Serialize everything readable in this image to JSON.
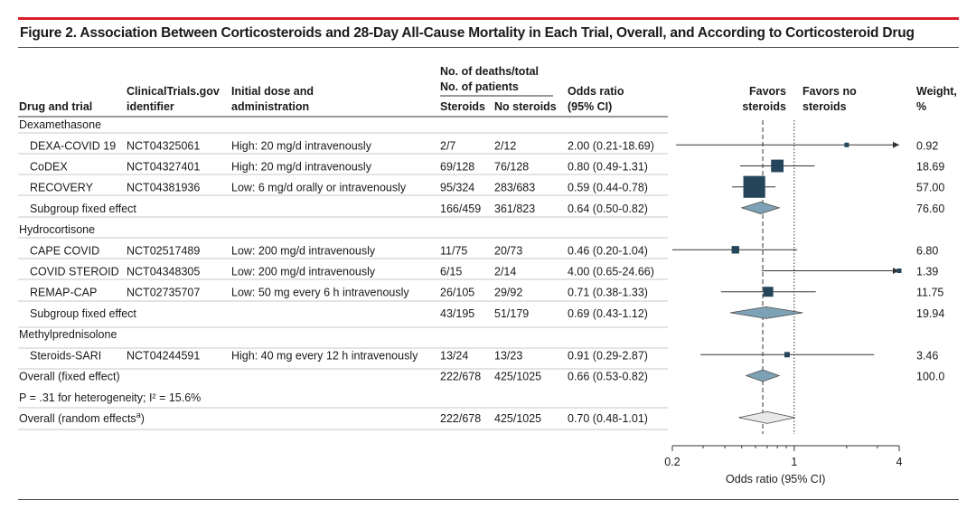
{
  "title": "Figure 2. Association Between Corticosteroids and 28-Day All-Cause Mortality in Each Trial, Overall, and According to Corticosteroid Drug",
  "headers": {
    "deaths_top1": "No. of deaths/total",
    "deaths_top2": "No. of patients",
    "drug": "Drug and trial",
    "id1": "ClinicalTrials.gov",
    "id2": "identifier",
    "dose1": "Initial dose and",
    "dose2": "administration",
    "steroids": "Steroids",
    "nosteroids": "No steroids",
    "or1": "Odds ratio",
    "or2": "(95% CI)",
    "favors_left1": "Favors",
    "favors_left2": "steroids",
    "favors_right1": "Favors no",
    "favors_right2": "steroids",
    "weight1": "Weight,",
    "weight2": "%"
  },
  "heterogeneity": "P = .31 for heterogeneity; I² = 15.6%",
  "colors": {
    "accent_red": "#d91f2b",
    "box": "#25465a",
    "diamond_fixed": "#7da2b5",
    "diamond_random": "#e8e8e8"
  },
  "chart_data": {
    "type": "forest",
    "xlabel": "Odds ratio (95% CI)",
    "xscale": "log",
    "xlim": [
      0.2,
      4
    ],
    "xticks": [
      "0.2",
      "1",
      "4"
    ],
    "null_line": 1,
    "fixed_effect_reference_line": 0.66,
    "rows": [
      {
        "kind": "group",
        "label": "Dexamethasone"
      },
      {
        "kind": "study",
        "label": "DEXA-COVID 19",
        "id": "NCT04325061",
        "dose": "High: 20 mg/d intravenously",
        "steroids": "2/7",
        "nosteroids": "2/12",
        "or_text": "2.00 (0.21-18.69)",
        "or": 2.0,
        "lo": 0.21,
        "hi": 18.69,
        "weight": "0.92"
      },
      {
        "kind": "study",
        "label": "CoDEX",
        "id": "NCT04327401",
        "dose": "High: 20 mg/d intravenously",
        "steroids": "69/128",
        "nosteroids": "76/128",
        "or_text": "0.80 (0.49-1.31)",
        "or": 0.8,
        "lo": 0.49,
        "hi": 1.31,
        "weight": "18.69"
      },
      {
        "kind": "study",
        "label": "RECOVERY",
        "id": "NCT04381936",
        "dose": "Low: 6 mg/d orally or intravenously",
        "steroids": "95/324",
        "nosteroids": "283/683",
        "or_text": "0.59 (0.44-0.78)",
        "or": 0.59,
        "lo": 0.44,
        "hi": 0.78,
        "weight": "57.00"
      },
      {
        "kind": "subgroup",
        "label": "Subgroup fixed effect",
        "steroids": "166/459",
        "nosteroids": "361/823",
        "or_text": "0.64 (0.50-0.82)",
        "or": 0.64,
        "lo": 0.5,
        "hi": 0.82,
        "weight": "76.60"
      },
      {
        "kind": "group",
        "label": "Hydrocortisone"
      },
      {
        "kind": "study",
        "label": "CAPE COVID",
        "id": "NCT02517489",
        "dose": "Low: 200 mg/d intravenously",
        "steroids": "11/75",
        "nosteroids": "20/73",
        "or_text": "0.46 (0.20-1.04)",
        "or": 0.46,
        "lo": 0.2,
        "hi": 1.04,
        "weight": "6.80"
      },
      {
        "kind": "study",
        "label": "COVID STEROID",
        "id": "NCT04348305",
        "dose": "Low: 200 mg/d intravenously",
        "steroids": "6/15",
        "nosteroids": "2/14",
        "or_text": "4.00 (0.65-24.66)",
        "or": 4.0,
        "lo": 0.65,
        "hi": 24.66,
        "weight": "1.39"
      },
      {
        "kind": "study",
        "label": "REMAP-CAP",
        "id": "NCT02735707",
        "dose": "Low: 50 mg every 6 h intravenously",
        "steroids": "26/105",
        "nosteroids": "29/92",
        "or_text": "0.71 (0.38-1.33)",
        "or": 0.71,
        "lo": 0.38,
        "hi": 1.33,
        "weight": "11.75"
      },
      {
        "kind": "subgroup",
        "label": "Subgroup fixed effect",
        "steroids": "43/195",
        "nosteroids": "51/179",
        "or_text": "0.69 (0.43-1.12)",
        "or": 0.69,
        "lo": 0.43,
        "hi": 1.12,
        "weight": "19.94"
      },
      {
        "kind": "group",
        "label": "Methylprednisolone"
      },
      {
        "kind": "study",
        "label": "Steroids-SARI",
        "id": "NCT04244591",
        "dose": "High: 40 mg every 12 h intravenously",
        "steroids": "13/24",
        "nosteroids": "13/23",
        "or_text": "0.91 (0.29-2.87)",
        "or": 0.91,
        "lo": 0.29,
        "hi": 2.87,
        "weight": "3.46"
      },
      {
        "kind": "overall",
        "label": "Overall (fixed effect)",
        "steroids": "222/678",
        "nosteroids": "425/1025",
        "or_text": "0.66 (0.53-0.82)",
        "or": 0.66,
        "lo": 0.53,
        "hi": 0.82,
        "weight": "100.0"
      },
      {
        "kind": "random",
        "label": "Overall (random effects",
        "sup": "a",
        "suffix": ")",
        "steroids": "222/678",
        "nosteroids": "425/1025",
        "or_text": "0.70 (0.48-1.01)",
        "or": 0.7,
        "lo": 0.48,
        "hi": 1.01
      }
    ]
  }
}
